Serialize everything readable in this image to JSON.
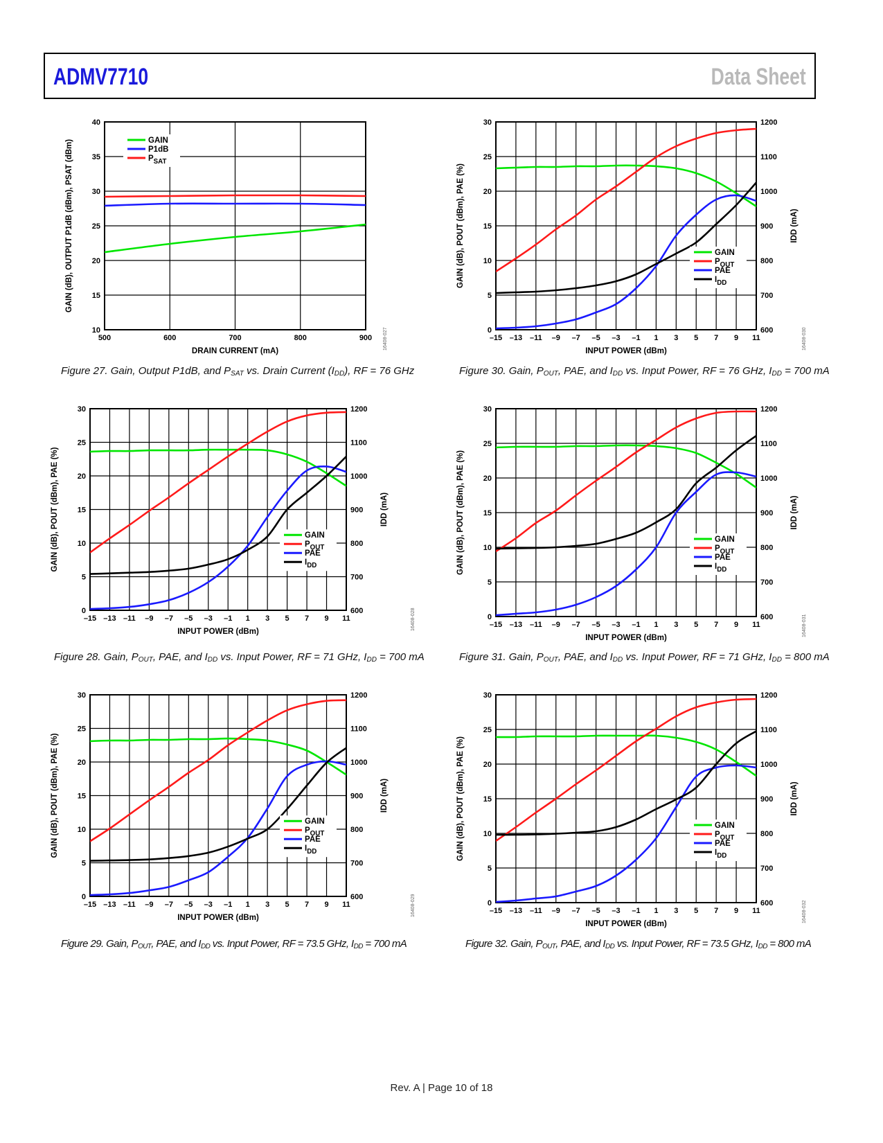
{
  "header": {
    "product": "ADMV7710",
    "doc_type": "Data Sheet"
  },
  "footer": {
    "text": "Rev. A | Page 10 of 18"
  },
  "colors": {
    "gain": "#00e600",
    "p1db": "#1a1aff",
    "psat": "#ff1a1a",
    "pout": "#ff1a1a",
    "pae": "#1a1aff",
    "idd": "#000000",
    "brand": "#1a1adb"
  },
  "chart_data": [
    {
      "id": "fig27",
      "type": "line",
      "caption": {
        "pre": "Figure 27. Gain, Output P1dB, and P",
        "sub1": "SAT",
        "mid": " vs. Drain Current (I",
        "sub2": "DD",
        "post": "), RF = 76 GHz"
      },
      "fig_code": "16408-027",
      "xlabel": "DRAIN CURRENT (mA)",
      "ylabel": "GAIN (dB), OUTPUT P1dB (dBm), PSAT (dBm)",
      "xlim": [
        500,
        900
      ],
      "ylim": [
        10,
        40
      ],
      "xticks": [
        "500",
        "600",
        "700",
        "800",
        "900"
      ],
      "yticks": [
        "10",
        "15",
        "20",
        "25",
        "30",
        "35",
        "40"
      ],
      "legend": [
        "GAIN",
        "P1dB",
        "PSAT"
      ],
      "x": [
        500,
        600,
        700,
        800,
        900
      ],
      "series": [
        {
          "name": "GAIN",
          "values": [
            21.2,
            22.4,
            23.4,
            24.2,
            25.2
          ]
        },
        {
          "name": "P1dB",
          "values": [
            27.9,
            28.2,
            28.2,
            28.2,
            28.0
          ]
        },
        {
          "name": "PSAT",
          "values": [
            29.2,
            29.3,
            29.4,
            29.4,
            29.3
          ]
        }
      ]
    },
    {
      "id": "fig30",
      "type": "line",
      "caption": {
        "pre": "Figure 30. Gain, P",
        "sub1": "OUT",
        "mid": ", PAE, and I",
        "sub2": "DD",
        "post": " vs. Input Power, RF = 76 GHz, I",
        "sub3": "DD",
        "post2": " = 700 mA"
      },
      "fig_code": "16408-030",
      "xlabel": "INPUT POWER (dBm)",
      "ylabel": "GAIN (dB), POUT (dBm), PAE (%)",
      "y2label": "IDD (mA)",
      "xlim": [
        -15,
        11
      ],
      "ylim": [
        0,
        30
      ],
      "y2lim": [
        600,
        1200
      ],
      "xticks": [
        "–15",
        "–13",
        "–11",
        "–9",
        "–7",
        "–5",
        "–3",
        "–1",
        "1",
        "3",
        "5",
        "7",
        "9",
        "11"
      ],
      "yticks": [
        "0",
        "5",
        "10",
        "15",
        "20",
        "25",
        "30"
      ],
      "y2ticks": [
        "600",
        "700",
        "800",
        "900",
        "1000",
        "1100",
        "1200"
      ],
      "legend": [
        "GAIN",
        "POUT",
        "PAE",
        "IDD"
      ],
      "x": [
        -15,
        -13,
        -11,
        -9,
        -7,
        -5,
        -3,
        -1,
        1,
        3,
        5,
        7,
        9,
        11
      ],
      "series": [
        {
          "name": "GAIN",
          "values": [
            23.3,
            23.4,
            23.5,
            23.5,
            23.6,
            23.6,
            23.7,
            23.7,
            23.6,
            23.3,
            22.6,
            21.4,
            19.7,
            17.8
          ]
        },
        {
          "name": "POUT",
          "values": [
            8.4,
            10.3,
            12.3,
            14.5,
            16.5,
            18.8,
            20.7,
            22.8,
            24.9,
            26.5,
            27.6,
            28.4,
            28.8,
            29.0
          ]
        },
        {
          "name": "PAE",
          "values": [
            0.2,
            0.3,
            0.5,
            0.9,
            1.5,
            2.5,
            3.7,
            6.0,
            9.2,
            13.6,
            16.6,
            18.8,
            19.4,
            18.6
          ]
        },
        {
          "name": "IDD",
          "values": [
            706,
            708,
            710,
            714,
            720,
            728,
            740,
            760,
            790,
            820,
            852,
            905,
            960,
            1025
          ]
        }
      ]
    },
    {
      "id": "fig28",
      "type": "line",
      "caption": {
        "pre": "Figure 28. Gain, P",
        "sub1": "OUT",
        "mid": ", PAE, and I",
        "sub2": "DD",
        "post": " vs. Input Power, RF = 71 GHz, I",
        "sub3": "DD",
        "post2": " = 700 mA"
      },
      "fig_code": "16408-028",
      "xlabel": "INPUT POWER (dBm)",
      "ylabel": "GAIN (dB), POUT (dBm), PAE (%)",
      "y2label": "IDD (mA)",
      "xlim": [
        -15,
        11
      ],
      "ylim": [
        0,
        30
      ],
      "y2lim": [
        600,
        1200
      ],
      "xticks": [
        "–15",
        "–13",
        "–11",
        "–9",
        "–7",
        "–5",
        "–3",
        "–1",
        "1",
        "3",
        "5",
        "7",
        "9",
        "11"
      ],
      "yticks": [
        "0",
        "5",
        "10",
        "15",
        "20",
        "25",
        "30"
      ],
      "y2ticks": [
        "600",
        "700",
        "800",
        "900",
        "1000",
        "1100",
        "1200"
      ],
      "legend": [
        "GAIN",
        "POUT",
        "PAE",
        "IDD"
      ],
      "x": [
        -15,
        -13,
        -11,
        -9,
        -7,
        -5,
        -3,
        -1,
        1,
        3,
        5,
        7,
        9,
        11
      ],
      "series": [
        {
          "name": "GAIN",
          "values": [
            23.6,
            23.7,
            23.7,
            23.8,
            23.8,
            23.8,
            23.9,
            23.9,
            23.9,
            23.8,
            23.2,
            22.1,
            20.4,
            18.5
          ]
        },
        {
          "name": "POUT",
          "values": [
            8.6,
            10.7,
            12.7,
            14.8,
            16.8,
            18.9,
            20.9,
            22.9,
            24.8,
            26.6,
            28.1,
            29.0,
            29.4,
            29.5
          ]
        },
        {
          "name": "PAE",
          "values": [
            0.2,
            0.3,
            0.5,
            0.9,
            1.5,
            2.6,
            4.2,
            6.5,
            9.6,
            13.9,
            17.8,
            20.8,
            21.4,
            20.6
          ]
        },
        {
          "name": "IDD",
          "values": [
            708,
            710,
            712,
            714,
            718,
            724,
            736,
            752,
            780,
            820,
            900,
            950,
            1000,
            1058
          ]
        }
      ]
    },
    {
      "id": "fig31",
      "type": "line",
      "caption": {
        "pre": "Figure 31. Gain, P",
        "sub1": "OUT",
        "mid": ", PAE, and I",
        "sub2": "DD",
        "post": " vs. Input Power, RF = 71 GHz, I",
        "sub3": "DD",
        "post2": " = 800 mA"
      },
      "fig_code": "16408-031",
      "xlabel": "INPUT POWER (dBm)",
      "ylabel": "GAIN (dB), POUT (dBm), PAE (%)",
      "y2label": "IDD (mA)",
      "xlim": [
        -15,
        11
      ],
      "ylim": [
        0,
        30
      ],
      "y2lim": [
        600,
        1200
      ],
      "xticks": [
        "–15",
        "–13",
        "–11",
        "–9",
        "–7",
        "–5",
        "–3",
        "–1",
        "1",
        "3",
        "5",
        "7",
        "9",
        "11"
      ],
      "yticks": [
        "0",
        "5",
        "10",
        "15",
        "20",
        "25",
        "30"
      ],
      "y2ticks": [
        "600",
        "700",
        "800",
        "900",
        "1000",
        "1100",
        "1200"
      ],
      "legend": [
        "GAIN",
        "POUT",
        "PAE",
        "IDD"
      ],
      "x": [
        -15,
        -13,
        -11,
        -9,
        -7,
        -5,
        -3,
        -1,
        1,
        3,
        5,
        7,
        9,
        11
      ],
      "series": [
        {
          "name": "GAIN",
          "values": [
            24.4,
            24.5,
            24.5,
            24.5,
            24.6,
            24.6,
            24.7,
            24.7,
            24.6,
            24.3,
            23.6,
            22.2,
            20.6,
            18.6
          ]
        },
        {
          "name": "POUT",
          "values": [
            9.4,
            11.3,
            13.5,
            15.3,
            17.5,
            19.6,
            21.6,
            23.7,
            25.5,
            27.3,
            28.6,
            29.4,
            29.6,
            29.6
          ]
        },
        {
          "name": "PAE",
          "values": [
            0.2,
            0.4,
            0.6,
            1.0,
            1.7,
            2.8,
            4.4,
            6.8,
            10.0,
            15.0,
            18.0,
            20.5,
            20.8,
            20.2
          ]
        },
        {
          "name": "IDD",
          "values": [
            796,
            797,
            798,
            800,
            804,
            810,
            824,
            842,
            872,
            910,
            985,
            1030,
            1080,
            1122
          ]
        }
      ]
    },
    {
      "id": "fig29",
      "type": "line",
      "caption": {
        "pre": "Figure 29. Gain, P",
        "sub1": "OUT",
        "mid": ", PAE, and I",
        "sub2": "DD",
        "post": " vs. Input Power, RF = 73.5 GHz, I",
        "sub3": "DD",
        "post2": " = 700 mA"
      },
      "fig_code": "16408-029",
      "xlabel": "INPUT POWER (dBm)",
      "ylabel": "GAIN (dB), POUT (dBm), PAE (%)",
      "y2label": "IDD (mA)",
      "xlim": [
        -15,
        11
      ],
      "ylim": [
        0,
        30
      ],
      "y2lim": [
        600,
        1200
      ],
      "xticks": [
        "–15",
        "–13",
        "–11",
        "–9",
        "–7",
        "–5",
        "–3",
        "–1",
        "1",
        "3",
        "5",
        "7",
        "9",
        "11"
      ],
      "yticks": [
        "0",
        "5",
        "10",
        "15",
        "20",
        "25",
        "30"
      ],
      "y2ticks": [
        "600",
        "700",
        "800",
        "900",
        "1000",
        "1100",
        "1200"
      ],
      "legend": [
        "GAIN",
        "POUT",
        "PAE",
        "IDD"
      ],
      "x": [
        -15,
        -13,
        -11,
        -9,
        -7,
        -5,
        -3,
        -1,
        1,
        3,
        5,
        7,
        9,
        11
      ],
      "series": [
        {
          "name": "GAIN",
          "values": [
            23.1,
            23.2,
            23.2,
            23.3,
            23.3,
            23.4,
            23.4,
            23.5,
            23.4,
            23.2,
            22.6,
            21.7,
            20.0,
            18.1
          ]
        },
        {
          "name": "POUT",
          "values": [
            8.2,
            10.1,
            12.2,
            14.3,
            16.3,
            18.4,
            20.3,
            22.5,
            24.4,
            26.2,
            27.7,
            28.6,
            29.1,
            29.2
          ]
        },
        {
          "name": "PAE",
          "values": [
            0.2,
            0.3,
            0.5,
            0.9,
            1.4,
            2.4,
            3.6,
            5.9,
            8.7,
            13.1,
            17.9,
            19.6,
            20.1,
            19.6
          ]
        },
        {
          "name": "IDD",
          "values": [
            706,
            707,
            708,
            710,
            714,
            720,
            730,
            748,
            772,
            800,
            860,
            930,
            998,
            1042
          ]
        }
      ]
    },
    {
      "id": "fig32",
      "type": "line",
      "caption": {
        "pre": "Figure 32. Gain, P",
        "sub1": "OUT",
        "mid": ", PAE, and I",
        "sub2": "DD",
        "post": " vs. Input Power, RF = 73.5 GHz, I",
        "sub3": "DD",
        "post2": " = 800 mA"
      },
      "fig_code": "16408-032",
      "xlabel": "INPUT POWER (dBm)",
      "ylabel": "GAIN (dB), POUT (dBm), PAE (%)",
      "y2label": "IDD (mA)",
      "xlim": [
        -15,
        11
      ],
      "ylim": [
        0,
        30
      ],
      "y2lim": [
        600,
        1200
      ],
      "xticks": [
        "–15",
        "–13",
        "–11",
        "–9",
        "–7",
        "–5",
        "–3",
        "–1",
        "1",
        "3",
        "5",
        "7",
        "9",
        "11"
      ],
      "yticks": [
        "0",
        "5",
        "10",
        "15",
        "20",
        "25",
        "30"
      ],
      "y2ticks": [
        "600",
        "700",
        "800",
        "900",
        "1000",
        "1100",
        "1200"
      ],
      "legend": [
        "GAIN",
        "POUT",
        "PAE",
        "IDD"
      ],
      "x": [
        -15,
        -13,
        -11,
        -9,
        -7,
        -5,
        -3,
        -1,
        1,
        3,
        5,
        7,
        9,
        11
      ],
      "series": [
        {
          "name": "GAIN",
          "values": [
            23.9,
            23.9,
            24.0,
            24.0,
            24.0,
            24.1,
            24.1,
            24.1,
            24.1,
            23.8,
            23.2,
            22.1,
            20.3,
            18.3
          ]
        },
        {
          "name": "POUT",
          "values": [
            8.9,
            10.9,
            13.0,
            15.0,
            17.1,
            19.1,
            21.2,
            23.3,
            25.1,
            26.9,
            28.2,
            28.9,
            29.3,
            29.4
          ]
        },
        {
          "name": "PAE",
          "values": [
            0.1,
            0.3,
            0.6,
            0.9,
            1.6,
            2.4,
            3.9,
            6.2,
            9.3,
            13.8,
            18.2,
            19.5,
            19.8,
            19.5
          ]
        },
        {
          "name": "IDD",
          "values": [
            796,
            796,
            797,
            799,
            802,
            806,
            818,
            840,
            870,
            898,
            932,
            1000,
            1060,
            1095
          ]
        }
      ]
    }
  ]
}
